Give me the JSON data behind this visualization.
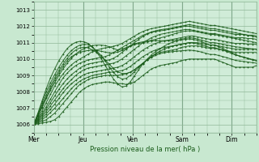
{
  "title": "Pression niveau de la mer( hPa )",
  "bg_color": "#c8e8d0",
  "plot_bg_color": "#d0ecd8",
  "grid_color": "#90b898",
  "line_color": "#1a5c1a",
  "ylim": [
    1005.5,
    1013.5
  ],
  "yticks": [
    1006,
    1007,
    1008,
    1009,
    1010,
    1011,
    1012,
    1013
  ],
  "x_day_labels": [
    "Mer",
    "Jeu",
    "Ven",
    "Sam",
    "Dim"
  ],
  "x_day_positions": [
    0,
    24,
    48,
    72,
    96
  ],
  "total_hours": 108,
  "series": [
    [
      1006.0,
      1006.05,
      1006.1,
      1006.15,
      1006.2,
      1006.3,
      1006.5,
      1006.8,
      1007.1,
      1007.4,
      1007.7,
      1008.0,
      1008.2,
      1008.35,
      1008.45,
      1008.5,
      1008.55,
      1008.6,
      1008.6,
      1008.55,
      1008.5,
      1008.5,
      1008.45,
      1008.5,
      1008.6,
      1008.8,
      1009.0,
      1009.2,
      1009.4,
      1009.5,
      1009.6,
      1009.65,
      1009.7,
      1009.75,
      1009.8,
      1009.9,
      1009.95,
      1010.0,
      1010.0,
      1010.0,
      1010.0,
      1010.0,
      1010.0,
      1010.0,
      1009.9,
      1009.8,
      1009.7,
      1009.6,
      1009.5,
      1009.5,
      1009.5,
      1009.5,
      1009.5,
      1009.6
    ],
    [
      1006.0,
      1006.1,
      1006.2,
      1006.3,
      1006.5,
      1006.7,
      1007.0,
      1007.3,
      1007.6,
      1007.9,
      1008.2,
      1008.45,
      1008.6,
      1008.75,
      1008.85,
      1008.9,
      1008.95,
      1009.0,
      1009.0,
      1009.0,
      1009.0,
      1009.05,
      1009.1,
      1009.2,
      1009.35,
      1009.55,
      1009.75,
      1009.95,
      1010.15,
      1010.3,
      1010.4,
      1010.45,
      1010.5,
      1010.55,
      1010.6,
      1010.7,
      1010.75,
      1010.8,
      1010.8,
      1010.8,
      1010.75,
      1010.7,
      1010.65,
      1010.65,
      1010.6,
      1010.55,
      1010.5,
      1010.45,
      1010.4,
      1010.4,
      1010.4,
      1010.4,
      1010.4,
      1010.4
    ],
    [
      1006.0,
      1006.15,
      1006.3,
      1006.5,
      1006.75,
      1007.0,
      1007.3,
      1007.6,
      1007.9,
      1008.2,
      1008.45,
      1008.65,
      1008.8,
      1008.9,
      1009.0,
      1009.05,
      1009.1,
      1009.15,
      1009.2,
      1009.2,
      1009.25,
      1009.3,
      1009.4,
      1009.55,
      1009.75,
      1009.95,
      1010.15,
      1010.3,
      1010.45,
      1010.55,
      1010.65,
      1010.7,
      1010.75,
      1010.8,
      1010.85,
      1010.9,
      1010.95,
      1011.0,
      1011.0,
      1011.0,
      1010.95,
      1010.9,
      1010.85,
      1010.85,
      1010.8,
      1010.75,
      1010.7,
      1010.65,
      1010.6,
      1010.6,
      1010.6,
      1010.6,
      1010.6,
      1010.6
    ],
    [
      1006.0,
      1006.2,
      1006.4,
      1006.65,
      1006.95,
      1007.25,
      1007.6,
      1007.95,
      1008.25,
      1008.5,
      1008.7,
      1008.9,
      1009.05,
      1009.15,
      1009.2,
      1009.25,
      1009.3,
      1009.35,
      1009.4,
      1009.45,
      1009.5,
      1009.6,
      1009.75,
      1009.95,
      1010.15,
      1010.35,
      1010.55,
      1010.7,
      1010.85,
      1010.95,
      1011.05,
      1011.1,
      1011.15,
      1011.2,
      1011.25,
      1011.3,
      1011.35,
      1011.4,
      1011.4,
      1011.35,
      1011.3,
      1011.25,
      1011.2,
      1011.2,
      1011.15,
      1011.1,
      1011.05,
      1011.0,
      1010.95,
      1010.95,
      1010.95,
      1010.9,
      1010.9,
      1010.9
    ],
    [
      1006.0,
      1006.25,
      1006.5,
      1006.8,
      1007.15,
      1007.5,
      1007.85,
      1008.2,
      1008.5,
      1008.75,
      1009.0,
      1009.2,
      1009.35,
      1009.45,
      1009.5,
      1009.55,
      1009.6,
      1009.65,
      1009.7,
      1009.75,
      1009.85,
      1010.0,
      1010.2,
      1010.4,
      1010.6,
      1010.8,
      1011.0,
      1011.15,
      1011.3,
      1011.4,
      1011.5,
      1011.55,
      1011.6,
      1011.65,
      1011.7,
      1011.75,
      1011.8,
      1011.8,
      1011.75,
      1011.7,
      1011.65,
      1011.6,
      1011.55,
      1011.55,
      1011.5,
      1011.45,
      1011.4,
      1011.35,
      1011.3,
      1011.3,
      1011.3,
      1011.25,
      1011.25,
      1011.2
    ],
    [
      1006.0,
      1006.3,
      1006.6,
      1006.95,
      1007.35,
      1007.75,
      1008.15,
      1008.5,
      1008.8,
      1009.05,
      1009.25,
      1009.45,
      1009.6,
      1009.7,
      1009.75,
      1009.8,
      1009.85,
      1009.9,
      1009.95,
      1010.05,
      1010.2,
      1010.4,
      1010.6,
      1010.8,
      1011.0,
      1011.2,
      1011.38,
      1011.52,
      1011.62,
      1011.68,
      1011.72,
      1011.75,
      1011.8,
      1011.85,
      1011.9,
      1011.95,
      1012.0,
      1012.0,
      1011.95,
      1011.9,
      1011.85,
      1011.8,
      1011.75,
      1011.75,
      1011.7,
      1011.65,
      1011.6,
      1011.55,
      1011.5,
      1011.5,
      1011.5,
      1011.45,
      1011.45,
      1011.4
    ],
    [
      1006.0,
      1006.35,
      1006.7,
      1007.1,
      1007.55,
      1008.0,
      1008.45,
      1008.85,
      1009.15,
      1009.4,
      1009.6,
      1009.75,
      1009.85,
      1009.95,
      1010.0,
      1010.05,
      1010.1,
      1010.15,
      1010.25,
      1010.4,
      1010.55,
      1010.7,
      1010.85,
      1011.0,
      1011.15,
      1011.3,
      1011.45,
      1011.55,
      1011.65,
      1011.72,
      1011.78,
      1011.82,
      1011.85,
      1011.9,
      1011.95,
      1012.0,
      1012.05,
      1012.1,
      1012.05,
      1012.0,
      1011.95,
      1011.9,
      1011.85,
      1011.85,
      1011.8,
      1011.75,
      1011.7,
      1011.65,
      1011.6,
      1011.55,
      1011.5,
      1011.45,
      1011.4,
      1011.35
    ],
    [
      1006.0,
      1006.4,
      1006.85,
      1007.35,
      1007.85,
      1008.35,
      1008.75,
      1009.1,
      1009.4,
      1009.65,
      1009.85,
      1010.0,
      1010.15,
      1010.3,
      1010.45,
      1010.55,
      1010.62,
      1010.68,
      1010.72,
      1010.78,
      1010.85,
      1010.95,
      1011.1,
      1011.25,
      1011.4,
      1011.55,
      1011.68,
      1011.78,
      1011.85,
      1011.9,
      1011.95,
      1012.0,
      1012.05,
      1012.1,
      1012.15,
      1012.2,
      1012.25,
      1012.3,
      1012.25,
      1012.2,
      1012.15,
      1012.1,
      1012.05,
      1012.05,
      1012.0,
      1011.95,
      1011.9,
      1011.85,
      1011.8,
      1011.75,
      1011.7,
      1011.65,
      1011.6,
      1011.55
    ],
    [
      1006.0,
      1006.5,
      1007.05,
      1007.6,
      1008.1,
      1008.55,
      1009.0,
      1009.4,
      1009.75,
      1010.05,
      1010.3,
      1010.5,
      1010.65,
      1010.75,
      1010.82,
      1010.85,
      1010.85,
      1010.82,
      1010.75,
      1010.65,
      1010.55,
      1010.6,
      1010.7,
      1010.82,
      1010.92,
      1011.0,
      1011.05,
      1011.1,
      1011.15,
      1011.2,
      1011.28,
      1011.35,
      1011.42,
      1011.5,
      1011.58,
      1011.65,
      1011.7,
      1011.72,
      1011.7,
      1011.65,
      1011.6,
      1011.55,
      1011.5,
      1011.5,
      1011.45,
      1011.4,
      1011.35,
      1011.3,
      1011.25,
      1011.2,
      1011.15,
      1011.1,
      1011.05,
      1011.0
    ],
    [
      1006.0,
      1006.55,
      1007.1,
      1007.65,
      1008.2,
      1008.7,
      1009.15,
      1009.55,
      1009.9,
      1010.15,
      1010.3,
      1010.4,
      1010.48,
      1010.52,
      1010.55,
      1010.52,
      1010.48,
      1010.42,
      1010.38,
      1010.38,
      1010.42,
      1010.52,
      1010.65,
      1010.78,
      1010.88,
      1010.95,
      1011.0,
      1011.05,
      1011.1,
      1011.12,
      1011.12,
      1011.12,
      1011.12,
      1011.12,
      1011.15,
      1011.2,
      1011.25,
      1011.3,
      1011.28,
      1011.22,
      1011.15,
      1011.08,
      1011.0,
      1011.0,
      1010.95,
      1010.9,
      1010.85,
      1010.8,
      1010.75,
      1010.72,
      1010.68,
      1010.65,
      1010.62,
      1010.6
    ],
    [
      1006.0,
      1006.6,
      1007.2,
      1007.8,
      1008.35,
      1008.85,
      1009.3,
      1009.7,
      1010.05,
      1010.35,
      1010.55,
      1010.68,
      1010.72,
      1010.68,
      1010.55,
      1010.4,
      1010.2,
      1009.95,
      1009.68,
      1009.42,
      1009.22,
      1009.12,
      1009.12,
      1009.2,
      1009.35,
      1009.55,
      1009.75,
      1009.95,
      1010.1,
      1010.22,
      1010.32,
      1010.38,
      1010.42,
      1010.45,
      1010.48,
      1010.5,
      1010.52,
      1010.55,
      1010.52,
      1010.48,
      1010.42,
      1010.35,
      1010.28,
      1010.28,
      1010.22,
      1010.15,
      1010.08,
      1010.0,
      1009.92,
      1009.88,
      1009.85,
      1009.82,
      1009.78,
      1009.75
    ],
    [
      1006.0,
      1006.65,
      1007.35,
      1008.0,
      1008.55,
      1009.05,
      1009.5,
      1009.9,
      1010.25,
      1010.52,
      1010.72,
      1010.85,
      1010.9,
      1010.88,
      1010.72,
      1010.5,
      1010.22,
      1009.88,
      1009.52,
      1009.18,
      1008.92,
      1008.78,
      1008.82,
      1009.0,
      1009.22,
      1009.48,
      1009.72,
      1009.95,
      1010.15,
      1010.32,
      1010.48,
      1010.6,
      1010.7,
      1010.78,
      1010.85,
      1010.9,
      1010.95,
      1011.0,
      1010.98,
      1010.92,
      1010.85,
      1010.78,
      1010.7,
      1010.7,
      1010.62,
      1010.55,
      1010.45,
      1010.35,
      1010.25,
      1010.18,
      1010.12,
      1010.05,
      1009.98,
      1009.92
    ],
    [
      1006.0,
      1006.7,
      1007.45,
      1008.2,
      1008.85,
      1009.4,
      1009.9,
      1010.3,
      1010.65,
      1010.88,
      1011.02,
      1011.08,
      1011.05,
      1010.95,
      1010.72,
      1010.42,
      1010.05,
      1009.62,
      1009.18,
      1008.78,
      1008.48,
      1008.3,
      1008.35,
      1008.62,
      1008.98,
      1009.35,
      1009.7,
      1010.0,
      1010.25,
      1010.45,
      1010.62,
      1010.78,
      1010.92,
      1011.02,
      1011.1,
      1011.16,
      1011.2,
      1011.22,
      1011.2,
      1011.14,
      1011.05,
      1010.95,
      1010.85,
      1010.85,
      1010.75,
      1010.65,
      1010.52,
      1010.4,
      1010.28,
      1010.18,
      1010.1,
      1010.02,
      1009.95,
      1009.88
    ]
  ]
}
